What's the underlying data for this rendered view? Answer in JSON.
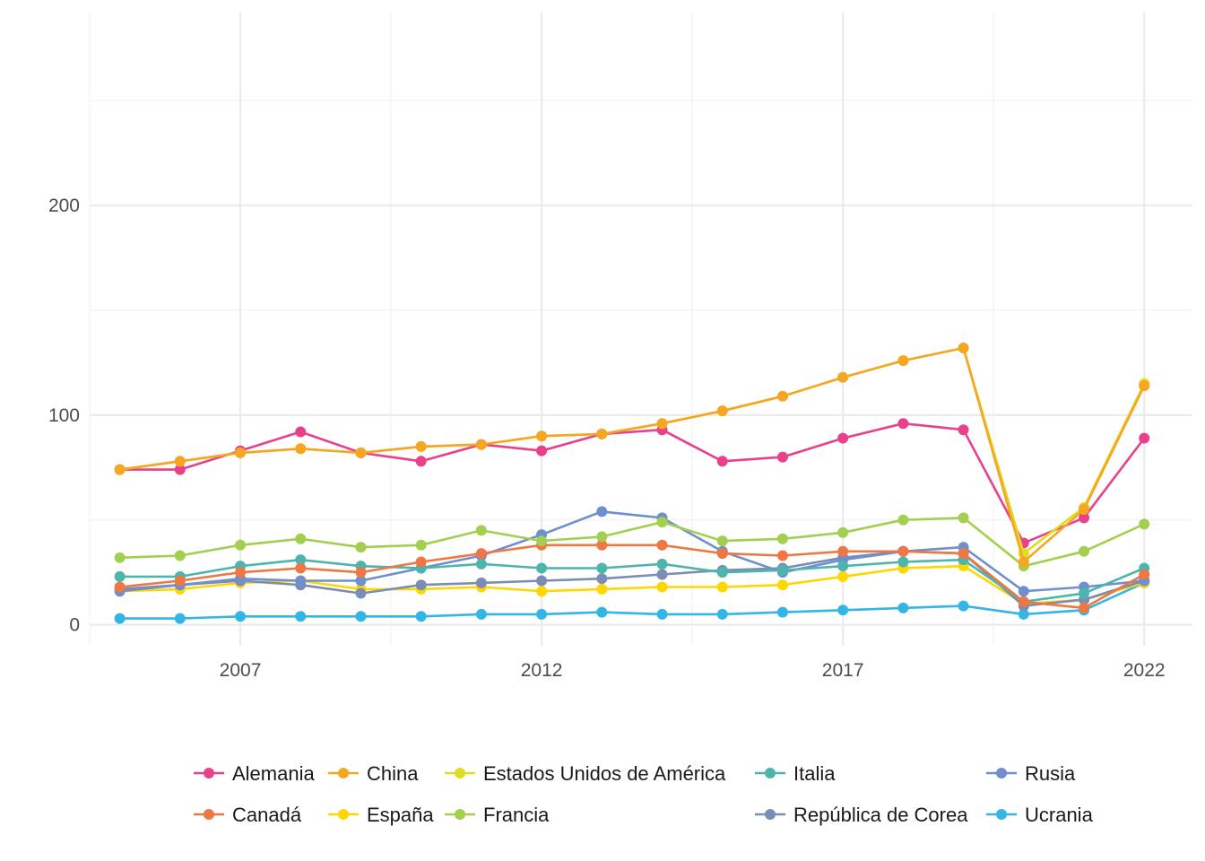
{
  "chart_data": {
    "type": "line",
    "title": "",
    "xlabel": "",
    "ylabel": "",
    "x": [
      2005,
      2006,
      2007,
      2008,
      2009,
      2010,
      2011,
      2012,
      2013,
      2014,
      2015,
      2016,
      2017,
      2018,
      2019,
      2020,
      2021,
      2022
    ],
    "xlim": [
      2004.5,
      2022.8
    ],
    "ylim": [
      -10,
      292
    ],
    "x_ticks": [
      2007,
      2012,
      2017,
      2022
    ],
    "x_tick_labels": [
      "2007",
      "2012",
      "2017",
      "2022"
    ],
    "y_ticks": [
      0,
      100,
      200
    ],
    "y_tick_labels": [
      "0",
      "100",
      "200"
    ],
    "grid": true,
    "legend_position": "bottom",
    "series": [
      {
        "name": "China",
        "color": "#F5A623",
        "values": [
          74,
          78,
          82,
          84,
          82,
          85,
          86,
          90,
          91,
          96,
          102,
          109,
          118,
          126,
          132,
          30,
          55,
          114
        ]
      },
      {
        "name": "Estados Unidos de América",
        "color": "#DDDD22",
        "values": [
          74,
          78,
          82,
          84,
          82,
          85,
          86,
          90,
          91,
          96,
          102,
          109,
          118,
          126,
          132,
          34,
          56,
          115
        ]
      },
      {
        "name": "Alemania",
        "color": "#E8408A",
        "values": [
          74,
          74,
          83,
          92,
          82,
          78,
          86,
          83,
          91,
          93,
          78,
          80,
          89,
          96,
          93,
          39,
          51,
          89
        ]
      },
      {
        "name": "Francia",
        "color": "#A3CF4F",
        "values": [
          32,
          33,
          38,
          41,
          37,
          38,
          45,
          40,
          42,
          49,
          40,
          41,
          44,
          50,
          51,
          28,
          35,
          48
        ]
      },
      {
        "name": "Canadá",
        "color": "#EE7744",
        "values": [
          18,
          21,
          25,
          27,
          25,
          30,
          34,
          38,
          38,
          38,
          34,
          33,
          35,
          35,
          34,
          11,
          8,
          24
        ]
      },
      {
        "name": "Italia",
        "color": "#4DB6AC",
        "values": [
          23,
          23,
          28,
          31,
          28,
          27,
          29,
          27,
          27,
          29,
          25,
          26,
          28,
          30,
          31,
          11,
          15,
          27
        ]
      },
      {
        "name": "Rusia",
        "color": "#6F8FCF",
        "values": [
          16,
          19,
          22,
          21,
          21,
          27,
          33,
          43,
          54,
          51,
          35,
          25,
          31,
          35,
          37,
          16,
          18,
          21
        ]
      },
      {
        "name": "República de Corea",
        "color": "#7A8DB5",
        "values": [
          17,
          19,
          21,
          19,
          15,
          19,
          20,
          21,
          22,
          24,
          26,
          27,
          32,
          35,
          34,
          9,
          12,
          21
        ]
      },
      {
        "name": "España",
        "color": "#FFD700",
        "values": [
          16,
          17,
          20,
          21,
          17,
          17,
          18,
          16,
          17,
          18,
          18,
          19,
          23,
          27,
          28,
          10,
          12,
          20
        ]
      },
      {
        "name": "Ucrania",
        "color": "#33B5E5",
        "values": [
          3,
          3,
          4,
          4,
          4,
          4,
          5,
          5,
          6,
          5,
          5,
          6,
          7,
          8,
          9,
          5,
          7,
          20
        ]
      }
    ],
    "draw_order": [
      "Ucrania",
      "España",
      "República de Corea",
      "Rusia",
      "Italia",
      "Canadá",
      "Francia",
      "Alemania",
      "Estados Unidos de América",
      "China"
    ],
    "legend_rows": [
      [
        "Alemania",
        "China",
        "Estados Unidos de América",
        "Italia",
        "Rusia"
      ],
      [
        "Canadá",
        "España",
        "Francia",
        "República de Corea",
        "Ucrania"
      ]
    ]
  }
}
